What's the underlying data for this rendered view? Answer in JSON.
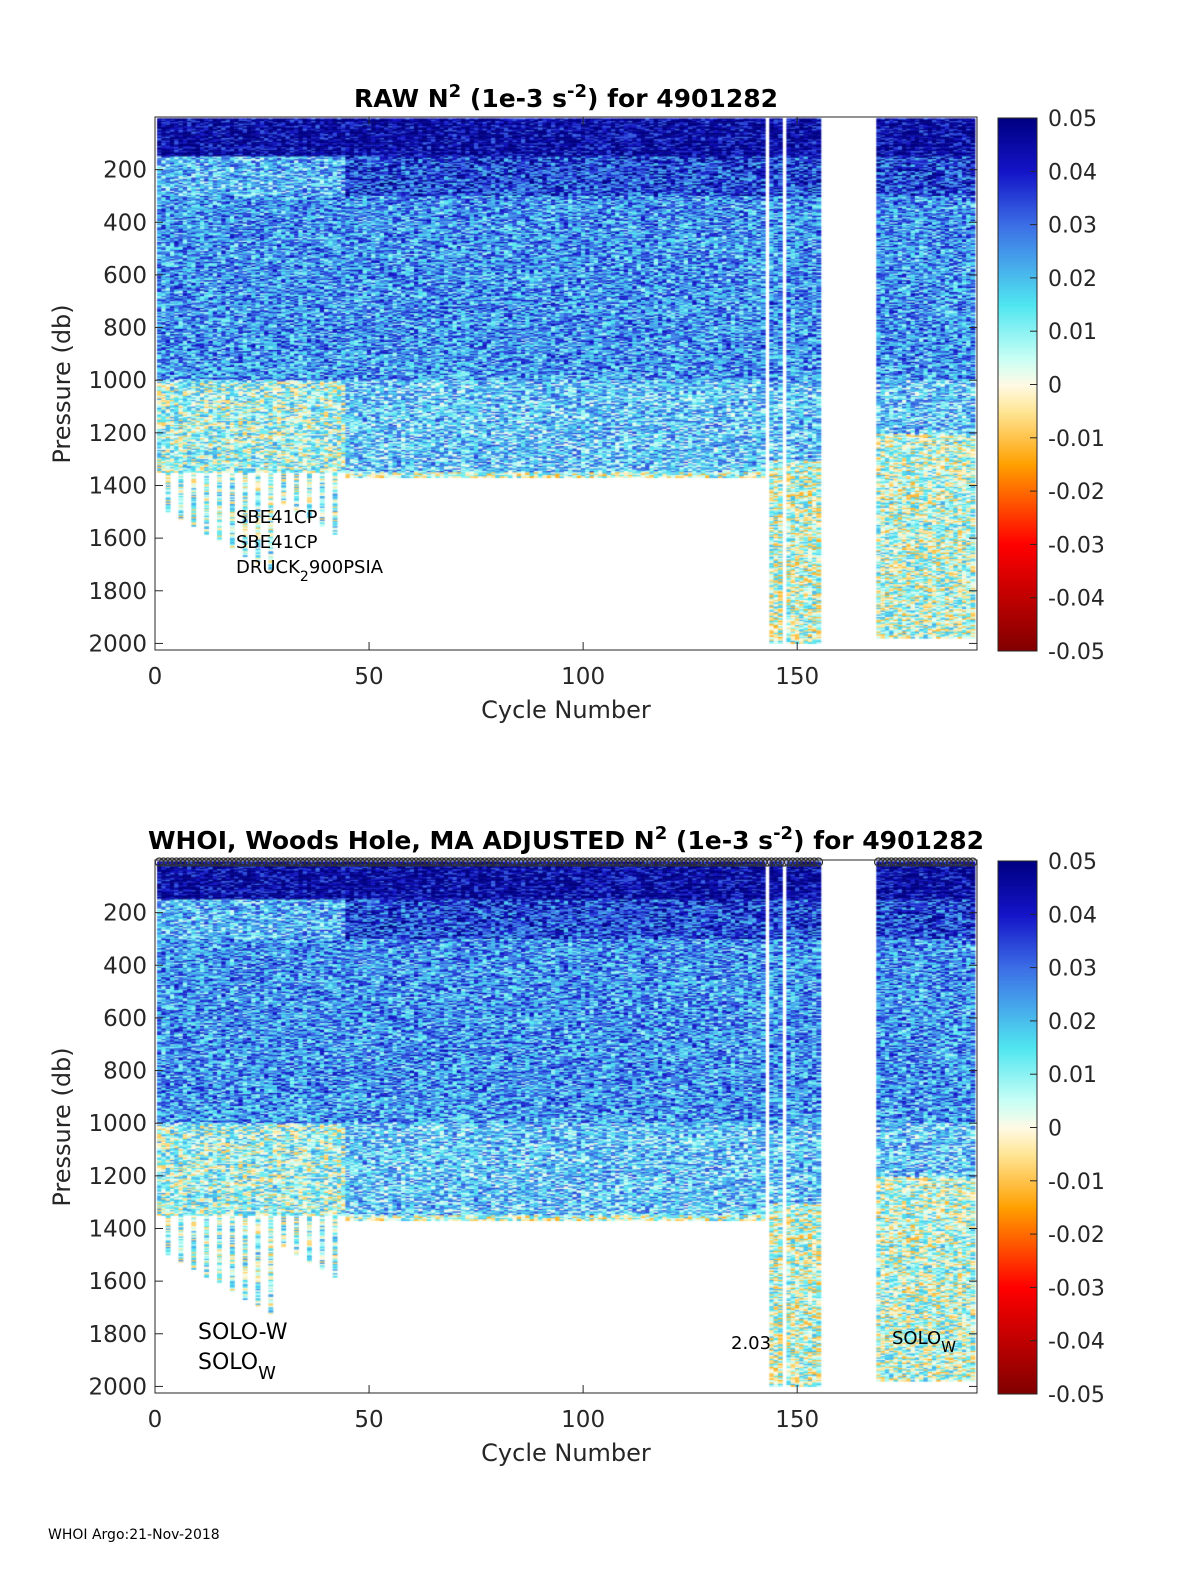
{
  "chart_data": [
    {
      "type": "heatmap",
      "title_main": "RAW N",
      "title_sup": "2",
      "title_unit_pre": " (1e-3 s",
      "title_unit_sup": "-2",
      "title_post": ") for 4901282",
      "xlabel": "Cycle Number",
      "ylabel": "Pressure (db)",
      "xlim": [
        0,
        192
      ],
      "ylim": [
        0,
        2025
      ],
      "y_reversed": true,
      "xticks": [
        "0",
        "50",
        "100",
        "150"
      ],
      "yticks": [
        "200",
        "400",
        "600",
        "800",
        "1000",
        "1200",
        "1400",
        "1600",
        "1800",
        "2000"
      ],
      "colorbar": {
        "min": -0.05,
        "max": 0.05,
        "ticks": [
          "0.05",
          "0.04",
          "0.03",
          "0.02",
          "0.01",
          "0",
          "-0.01",
          "-0.02",
          "-0.03",
          "-0.04",
          "-0.05"
        ]
      },
      "annotations": {
        "line1": "SBE41CP",
        "line2": "SBE41CP",
        "line3_pre": "DRUCK",
        "line3_sub": "2",
        "line3_post": "900PSIA"
      },
      "profile_max_pressure": [
        {
          "cycles": [
            0,
            45
          ],
          "pressure": 1350,
          "deep_columns_to": 1750
        },
        {
          "cycles": [
            45,
            143
          ],
          "pressure": 1370
        },
        {
          "cycles": [
            143,
            156
          ],
          "pressure": 2000
        },
        {
          "cycles": [
            156,
            169
          ],
          "pressure": null
        },
        {
          "cycles": [
            169,
            192
          ],
          "pressure": 1980
        }
      ]
    },
    {
      "type": "heatmap",
      "title_main": "WHOI, Woods Hole, MA  ADJUSTED N",
      "title_sup": "2",
      "title_unit_pre": " (1e-3 s",
      "title_unit_sup": "-2",
      "title_post": ") for 4901282",
      "xlabel": "Cycle Number",
      "ylabel": "Pressure (db)",
      "xlim": [
        0,
        192
      ],
      "ylim": [
        0,
        2025
      ],
      "y_reversed": true,
      "xticks": [
        "0",
        "50",
        "100",
        "150"
      ],
      "yticks": [
        "200",
        "400",
        "600",
        "800",
        "1000",
        "1200",
        "1400",
        "1600",
        "1800",
        "2000"
      ],
      "colorbar": {
        "min": -0.05,
        "max": 0.05,
        "ticks": [
          "0.05",
          "0.04",
          "0.03",
          "0.02",
          "0.01",
          "0",
          "-0.01",
          "-0.02",
          "-0.03",
          "-0.04",
          "-0.05"
        ]
      },
      "annotations": {
        "left1": "SOLO-W",
        "left2_pre": "SOLO",
        "left2_sub": "W",
        "mid": "2.03",
        "right_pre": "SOLO",
        "right_sub": "W"
      },
      "surface_markers": "open circles at each cycle"
    }
  ],
  "footer": "WHOI Argo:21-Nov-2018"
}
